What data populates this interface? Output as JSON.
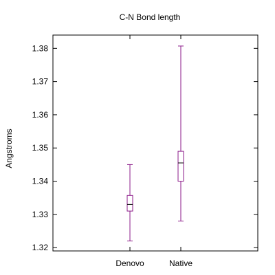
{
  "chart_data": {
    "type": "boxplot",
    "title": "C-N Bond length",
    "xlabel": "",
    "ylabel": "Angstroms",
    "ylim": [
      1.319,
      1.384
    ],
    "yticks": [
      1.32,
      1.33,
      1.34,
      1.35,
      1.36,
      1.37,
      1.38
    ],
    "ytick_labels": [
      "1.32",
      "1.33",
      "1.34",
      "1.35",
      "1.36",
      "1.37",
      "1.38"
    ],
    "categories": [
      "Denovo",
      "Native"
    ],
    "boxes": [
      {
        "label": "Denovo",
        "min": 1.322,
        "q1": 1.331,
        "median": 1.333,
        "q3": 1.3357,
        "max": 1.345
      },
      {
        "label": "Native",
        "min": 1.328,
        "q1": 1.34,
        "median": 1.3455,
        "q3": 1.349,
        "max": 1.3807
      }
    ],
    "grid": false,
    "box_color": "#8b1a89"
  }
}
